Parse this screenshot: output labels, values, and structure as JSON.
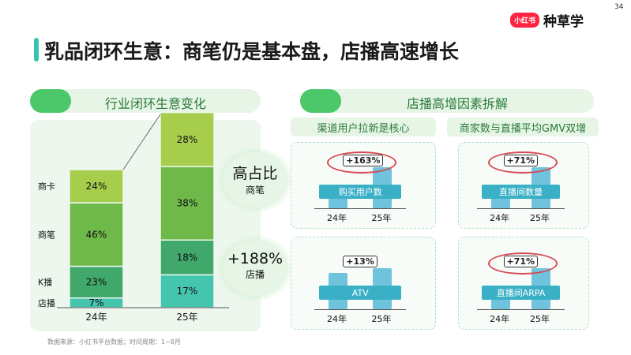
{
  "page_number": "34",
  "logo": {
    "badge": "小红书",
    "text": "种草学"
  },
  "title": "乳品闭环生意：商笔仍是基本盘，店播高速增长",
  "left_header": "行业闭环生意变化",
  "right_header": "店播高增因素拆解",
  "sub_headers": [
    "渠道用户拉新是核心",
    "商家数与直播平均GMV双增"
  ],
  "colors": {
    "shangka": "#a6cd4c",
    "shangbi": "#6fb84a",
    "kbo": "#3fa86a",
    "dianbo": "#45c4ae",
    "panel": "#eef7ee",
    "accent_red": "#d84a55",
    "metric_band": "#3ab0c6"
  },
  "callouts": [
    {
      "big": "高占比",
      "small": "商笔"
    },
    {
      "big": "+188%",
      "small": "店播"
    }
  ],
  "metrics": [
    {
      "label": "购买用户数",
      "change": "+163%",
      "years": [
        "24年",
        "25年"
      ],
      "values": [
        1,
        2.63
      ]
    },
    {
      "label": "直播间数量",
      "change": "+71%",
      "years": [
        "24年",
        "25年"
      ],
      "values": [
        1,
        1.71
      ]
    },
    {
      "label": "ATV",
      "change": "+13%",
      "years": [
        "24年",
        "25年"
      ],
      "values": [
        1,
        1.13
      ]
    },
    {
      "label": "直播间ARPA",
      "change": "+71%",
      "years": [
        "24年",
        "25年"
      ],
      "values": [
        1,
        1.71
      ]
    }
  ],
  "source_note": "数据来源：小红书平台数据；时间周期：1~8月",
  "chart_data": {
    "type": "bar",
    "stacked": true,
    "categories": [
      "24年",
      "25年"
    ],
    "series": [
      {
        "name": "店播",
        "values": [
          7,
          17
        ],
        "labels": [
          "7%",
          "17%"
        ]
      },
      {
        "name": "K播",
        "values": [
          23,
          18
        ],
        "labels": [
          "23%",
          "18%"
        ]
      },
      {
        "name": "商笔",
        "values": [
          46,
          38
        ],
        "labels": [
          "46%",
          "38%"
        ]
      },
      {
        "name": "商卡",
        "values": [
          24,
          28
        ],
        "labels": [
          "24%",
          "28%"
        ]
      }
    ],
    "relative_totals": [
      1,
      1.4
    ],
    "ylim": [
      0,
      100
    ]
  }
}
